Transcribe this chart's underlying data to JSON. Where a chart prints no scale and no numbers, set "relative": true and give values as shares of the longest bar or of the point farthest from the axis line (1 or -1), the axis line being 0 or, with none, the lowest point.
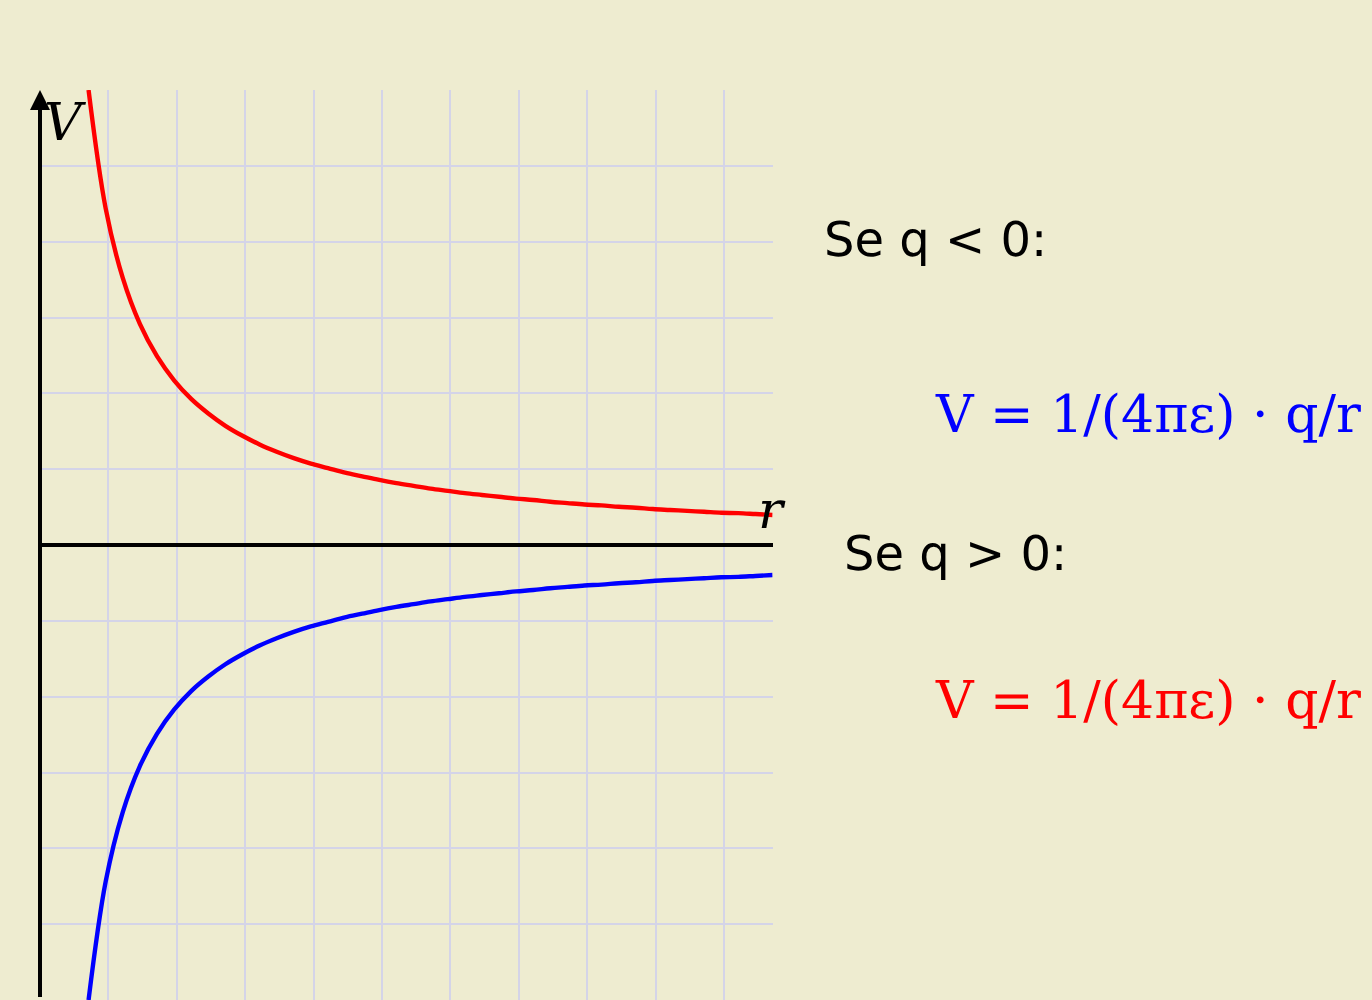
{
  "chart_data": {
    "type": "line",
    "relative": true,
    "xlabel": "r",
    "ylabel": "V",
    "grid": true,
    "marker": "none",
    "line_style": "solid",
    "categories": [
      null,
      null,
      null,
      null,
      null,
      null,
      null,
      null,
      null,
      null,
      null,
      null,
      null,
      null,
      null,
      null,
      null,
      null,
      null,
      null,
      null,
      null,
      null,
      null,
      null,
      null,
      null,
      null,
      null,
      null,
      null,
      null,
      null,
      null,
      null,
      null,
      null,
      null,
      null,
      null,
      null
    ],
    "series": [
      {
        "color": "#ff0000",
        "values": [
          1.0,
          0.74,
          0.587,
          0.486,
          0.415,
          0.362,
          0.321,
          0.289,
          0.262,
          0.24,
          0.221,
          0.205,
          0.191,
          0.179,
          0.169,
          0.159,
          0.151,
          0.143,
          0.136,
          0.13,
          0.124,
          0.119,
          0.114,
          0.11,
          0.106,
          0.102,
          0.099,
          0.095,
          0.092,
          0.089,
          0.087,
          0.084,
          0.082,
          0.079,
          0.077,
          0.075,
          0.073,
          0.071,
          0.07,
          0.068,
          0.066
        ]
      },
      {
        "color": "#0000ff",
        "values": [
          -1.0,
          -0.74,
          -0.587,
          -0.486,
          -0.415,
          -0.362,
          -0.321,
          -0.289,
          -0.262,
          -0.24,
          -0.221,
          -0.205,
          -0.191,
          -0.179,
          -0.169,
          -0.159,
          -0.151,
          -0.143,
          -0.136,
          -0.13,
          -0.124,
          -0.119,
          -0.114,
          -0.11,
          -0.106,
          -0.102,
          -0.099,
          -0.095,
          -0.092,
          -0.089,
          -0.087,
          -0.084,
          -0.082,
          -0.079,
          -0.077,
          -0.075,
          -0.073,
          -0.071,
          -0.07,
          -0.068,
          -0.066
        ]
      }
    ],
    "annotations": [
      "Se q < 0:",
      "V = 1/(4πε) · q/r",
      "Se q > 0:",
      "V = 1/(4πε) · q/r"
    ]
  }
}
